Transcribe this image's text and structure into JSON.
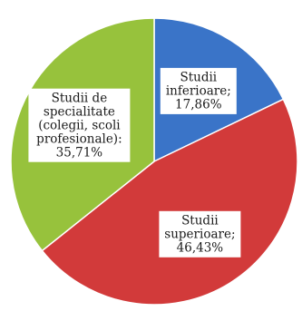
{
  "chart_data": {
    "type": "pie",
    "title": "",
    "slices": [
      {
        "label_lines": [
          "Studii",
          "inferioare;",
          "17,86%"
        ],
        "value": 17.86,
        "color": "#3a74c8"
      },
      {
        "label_lines": [
          "Studii",
          "superioare;",
          "46,43%"
        ],
        "value": 46.43,
        "color": "#d23a3a"
      },
      {
        "label_lines": [
          "Studii de",
          "specialitate",
          "(colegii, scoli",
          "profesionale):",
          "35,71%"
        ],
        "value": 35.71,
        "color": "#97c23c"
      }
    ],
    "start_angle_deg": 0,
    "direction": "clockwise",
    "legend": "none",
    "labels_inside": true
  }
}
